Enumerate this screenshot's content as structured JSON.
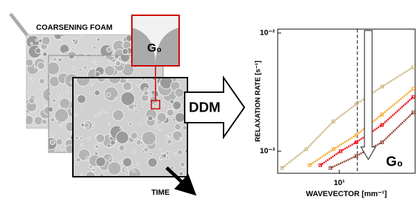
{
  "diagram": {
    "foam_label": "COARSENING FOAM",
    "inset_label": "G₀",
    "method": "DDM",
    "time_label": "TIME"
  },
  "chart_data": {
    "type": "scatter",
    "x_label": "WAVEVECTOR [mm⁻¹]",
    "y_label": "RELAXATION RATE [s⁻¹]",
    "log_x": true,
    "log_y": true,
    "xlim": [
      4.1,
      30
    ],
    "ylim": [
      0.00065,
      0.0108
    ],
    "xticks": [
      {
        "value": 10,
        "label": "10¹"
      }
    ],
    "yticks": [
      {
        "value": 0.001,
        "label": "10⁻³"
      },
      {
        "value": 0.01,
        "label": "10⁻²"
      }
    ],
    "reference_x": 13,
    "annotation": "G₀",
    "series": [
      {
        "color": "#c9b57c",
        "x": [
          4.36,
          6.2,
          9.2,
          12.8,
          18.6,
          29.2
        ],
        "values": [
          0.00072,
          0.00104,
          0.00179,
          0.0025,
          0.00352,
          0.00515
        ]
      },
      {
        "color": "#f5a623",
        "x": [
          6.5,
          9.2,
          12.8,
          18.6,
          29.2
        ],
        "values": [
          0.00076,
          0.00104,
          0.00137,
          0.00205,
          0.00338
        ]
      },
      {
        "color": "#e8000b",
        "x": [
          7.6,
          10.2,
          12.8,
          18.6,
          29.2
        ],
        "values": [
          0.00076,
          0.001,
          0.00119,
          0.00167,
          0.00288
        ]
      },
      {
        "color": "#8b3a2a",
        "x": [
          8.8,
          12.8,
          18.6,
          29.2
        ],
        "values": [
          0.00072,
          0.00091,
          0.00119,
          0.00213
        ]
      }
    ]
  }
}
